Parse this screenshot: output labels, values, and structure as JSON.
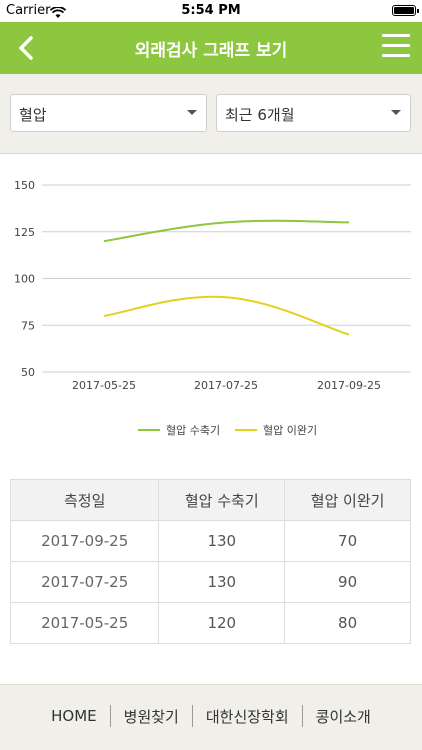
{
  "status": {
    "carrier": "Carrier",
    "time": "5:54 PM"
  },
  "header": {
    "title": "외래검사 그래프 보기"
  },
  "filters": {
    "test_type": "혈압",
    "period": "최근 6개월"
  },
  "chart_data": {
    "type": "line",
    "categories": [
      "2017-05-25",
      "2017-07-25",
      "2017-09-25"
    ],
    "yticks": [
      50,
      75,
      100,
      125,
      150
    ],
    "ylim": [
      50,
      150
    ],
    "grid": true,
    "legend_position": "bottom",
    "series": [
      {
        "name": "혈압 수축기",
        "color": "#8dc63f",
        "values": [
          120,
          130,
          130
        ]
      },
      {
        "name": "혈압 이완기",
        "color": "#e0d21f",
        "values": [
          80,
          90,
          70
        ]
      }
    ]
  },
  "table": {
    "headers": [
      "측정일",
      "혈압 수축기",
      "혈압 이완기"
    ],
    "rows": [
      [
        "2017-09-25",
        "130",
        "70"
      ],
      [
        "2017-07-25",
        "130",
        "90"
      ],
      [
        "2017-05-25",
        "120",
        "80"
      ]
    ]
  },
  "footer": {
    "links": [
      "HOME",
      "병원찾기",
      "대한신장학회",
      "콩이소개"
    ]
  }
}
